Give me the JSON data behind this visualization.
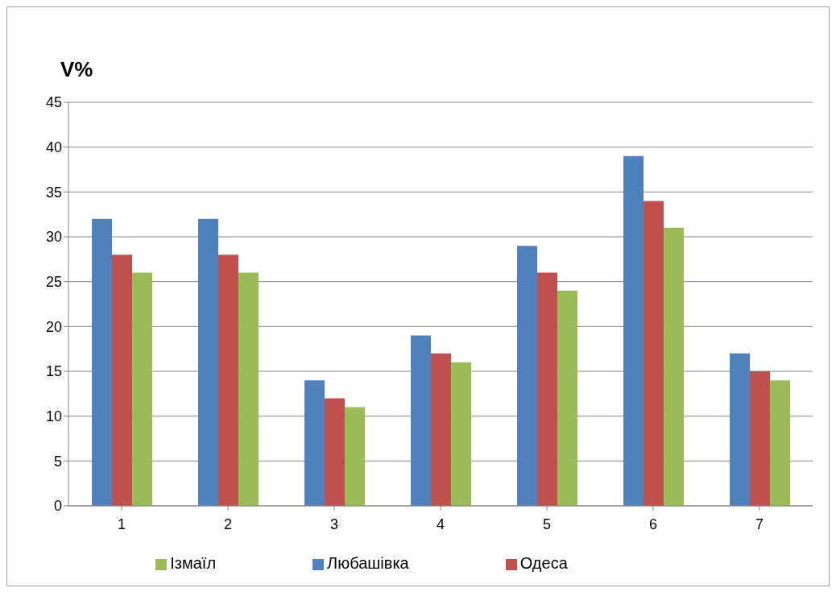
{
  "chart_data": {
    "type": "bar",
    "ylabel": "V%",
    "categories": [
      "1",
      "2",
      "3",
      "4",
      "5",
      "6",
      "7"
    ],
    "series": [
      {
        "name": "Любашівка",
        "color": "#4f81bd",
        "values": [
          32,
          32,
          14,
          19,
          29,
          39,
          17
        ]
      },
      {
        "name": "Одеса",
        "color": "#c0504d",
        "values": [
          28,
          28,
          12,
          17,
          26,
          34,
          15
        ]
      },
      {
        "name": "Ізмаїл",
        "color": "#9bbb59",
        "values": [
          26,
          26,
          11,
          16,
          24,
          31,
          14
        ]
      }
    ],
    "ylim": [
      0,
      45
    ],
    "yticks": [
      0,
      5,
      10,
      15,
      20,
      25,
      30,
      35,
      40,
      45
    ],
    "grid": "y",
    "legend": "bottom"
  }
}
